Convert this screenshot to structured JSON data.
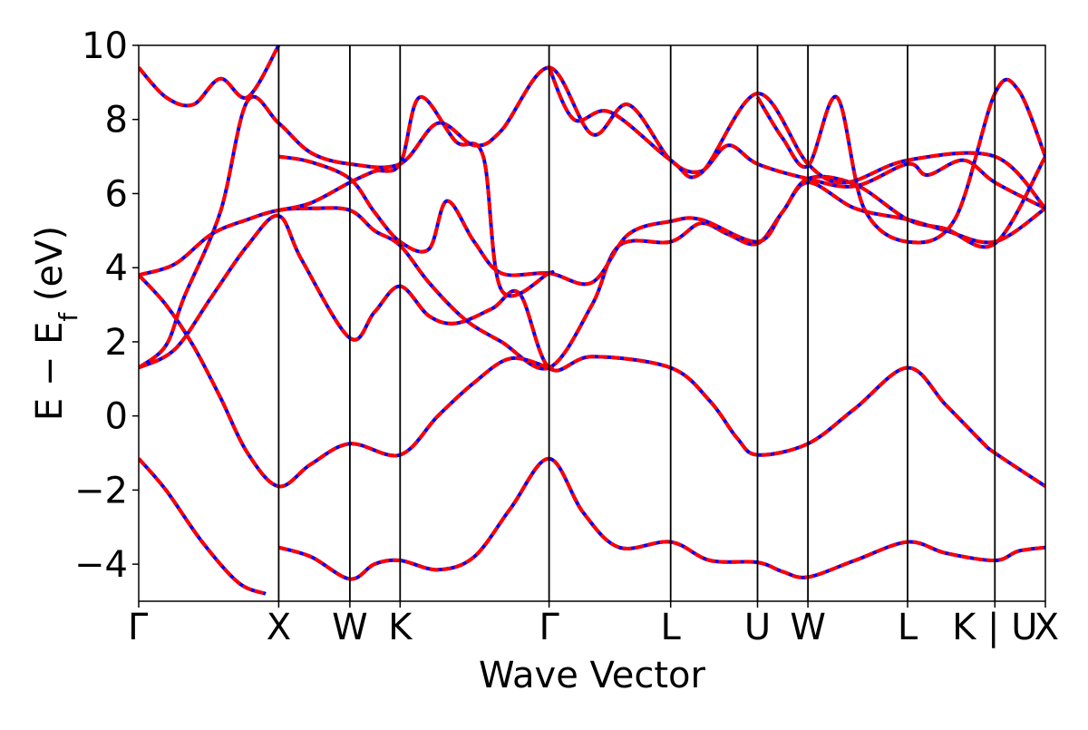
{
  "chart_data": {
    "type": "line",
    "xlabel": "Wave Vector",
    "ylabel_main": "E − E",
    "ylabel_sub": "f",
    "ylabel_unit": " (eV)",
    "ylim": [
      -5,
      10
    ],
    "yticks": [
      10,
      8,
      6,
      4,
      2,
      0,
      -2,
      -4
    ],
    "ytick_labels": [
      "10",
      "8",
      "6",
      "4",
      "2",
      "0",
      "−2",
      "−4"
    ],
    "grid": false,
    "legend": "none",
    "colors": {
      "line_primary": "#0000ff",
      "line_overlay": "#ff0000",
      "kpath_line": "#000000"
    },
    "kpath": [
      {
        "label": "Γ",
        "x": 0.0
      },
      {
        "label": "X",
        "x": 0.1544
      },
      {
        "label": "W",
        "x": 0.2329
      },
      {
        "label": "K",
        "x": 0.2883
      },
      {
        "label": "Γ",
        "x": 0.4526
      },
      {
        "label": "L",
        "x": 0.5867
      },
      {
        "label": "U",
        "x": 0.6825
      },
      {
        "label": "W",
        "x": 0.7381
      },
      {
        "label": "L",
        "x": 0.848
      },
      {
        "label": "K | U",
        "x": 0.9443
      },
      {
        "label": "X",
        "x": 1.0
      }
    ],
    "series": [
      {
        "points": [
          [
            0.0,
            -1.15
          ],
          [
            0.03,
            -2.0
          ],
          [
            0.07,
            -3.4
          ],
          [
            0.11,
            -4.5
          ],
          [
            0.14,
            -4.8
          ]
        ]
      },
      {
        "points": [
          [
            0.1544,
            -3.55
          ],
          [
            0.19,
            -3.8
          ],
          [
            0.2329,
            -4.4
          ],
          [
            0.26,
            -4.0
          ],
          [
            0.2883,
            -3.9
          ],
          [
            0.33,
            -4.15
          ],
          [
            0.37,
            -3.8
          ],
          [
            0.41,
            -2.5
          ],
          [
            0.4526,
            -1.15
          ],
          [
            0.49,
            -2.6
          ],
          [
            0.53,
            -3.55
          ],
          [
            0.5867,
            -3.4
          ],
          [
            0.63,
            -3.9
          ],
          [
            0.6825,
            -3.95
          ],
          [
            0.71,
            -4.2
          ],
          [
            0.7381,
            -4.35
          ],
          [
            0.79,
            -3.9
          ],
          [
            0.848,
            -3.4
          ],
          [
            0.89,
            -3.7
          ],
          [
            0.9443,
            -3.9
          ],
          [
            0.97,
            -3.65
          ],
          [
            1.0,
            -3.55
          ]
        ]
      },
      {
        "points": [
          [
            0.0,
            1.3
          ],
          [
            0.04,
            1.8
          ],
          [
            0.08,
            3.2
          ],
          [
            0.12,
            4.6
          ],
          [
            0.1544,
            5.4
          ],
          [
            0.18,
            4.2
          ],
          [
            0.2329,
            2.1
          ],
          [
            0.26,
            2.8
          ],
          [
            0.2883,
            3.5
          ],
          [
            0.32,
            2.7
          ],
          [
            0.35,
            2.5
          ],
          [
            0.39,
            2.9
          ],
          [
            0.42,
            3.3
          ],
          [
            0.4526,
            1.3
          ],
          [
            0.5,
            1.6
          ],
          [
            0.5867,
            1.3
          ],
          [
            0.63,
            0.4
          ],
          [
            0.66,
            -0.6
          ],
          [
            0.6825,
            -1.05
          ],
          [
            0.7381,
            -0.75
          ],
          [
            0.79,
            0.2
          ],
          [
            0.848,
            1.3
          ],
          [
            0.89,
            0.3
          ],
          [
            0.93,
            -0.7
          ],
          [
            0.9443,
            -1.0
          ],
          [
            1.0,
            -1.9
          ]
        ]
      },
      {
        "points": [
          [
            0.0,
            1.3
          ],
          [
            0.03,
            1.9
          ],
          [
            0.05,
            3.2
          ],
          [
            0.09,
            5.5
          ],
          [
            0.12,
            8.5
          ],
          [
            0.1544,
            7.9
          ],
          [
            0.19,
            7.1
          ],
          [
            0.2329,
            6.8
          ],
          [
            0.2883,
            6.8
          ],
          [
            0.33,
            7.9
          ],
          [
            0.37,
            7.3
          ],
          [
            0.4,
            7.7
          ],
          [
            0.4526,
            9.4
          ],
          [
            0.5,
            7.6
          ],
          [
            0.54,
            8.4
          ],
          [
            0.5867,
            6.9
          ],
          [
            0.62,
            6.6
          ],
          [
            0.65,
            7.3
          ],
          [
            0.6825,
            6.8
          ],
          [
            0.7381,
            6.4
          ],
          [
            0.79,
            6.2
          ],
          [
            0.848,
            6.8
          ],
          [
            0.87,
            6.5
          ],
          [
            0.91,
            6.9
          ],
          [
            0.9443,
            6.3
          ],
          [
            1.0,
            5.6
          ]
        ]
      },
      {
        "points": [
          [
            0.0,
            3.8
          ],
          [
            0.04,
            4.1
          ],
          [
            0.08,
            4.9
          ],
          [
            0.12,
            5.3
          ],
          [
            0.1544,
            5.55
          ],
          [
            0.19,
            5.6
          ],
          [
            0.2329,
            5.55
          ],
          [
            0.26,
            5.0
          ],
          [
            0.2883,
            4.6
          ],
          [
            0.32,
            3.6
          ],
          [
            0.36,
            2.6
          ],
          [
            0.4,
            2.0
          ],
          [
            0.4526,
            1.3
          ],
          [
            0.5,
            3.0
          ],
          [
            0.53,
            4.6
          ],
          [
            0.5867,
            4.7
          ],
          [
            0.62,
            5.2
          ],
          [
            0.65,
            4.9
          ],
          [
            0.6825,
            4.65
          ],
          [
            0.71,
            5.5
          ],
          [
            0.7381,
            6.3
          ],
          [
            0.79,
            5.6
          ],
          [
            0.848,
            5.3
          ],
          [
            0.89,
            5.0
          ],
          [
            0.9443,
            4.7
          ],
          [
            1.0,
            5.6
          ]
        ]
      },
      {
        "points": [
          [
            0.0,
            3.8
          ],
          [
            0.03,
            3.0
          ],
          [
            0.06,
            1.9
          ],
          [
            0.09,
            0.5
          ],
          [
            0.12,
            -1.0
          ],
          [
            0.1544,
            -1.9
          ],
          [
            0.19,
            -1.3
          ],
          [
            0.2329,
            -0.75
          ],
          [
            0.2883,
            -1.05
          ],
          [
            0.33,
            0.0
          ],
          [
            0.37,
            0.9
          ],
          [
            0.41,
            1.55
          ],
          [
            0.4526,
            1.3
          ],
          [
            0.4526,
            1.3
          ]
        ]
      },
      {
        "points": [
          [
            0.0,
            9.4
          ],
          [
            0.03,
            8.6
          ],
          [
            0.06,
            8.4
          ],
          [
            0.09,
            9.1
          ],
          [
            0.12,
            8.6
          ],
          [
            0.1544,
            10.0
          ]
        ]
      },
      {
        "points": [
          [
            0.1544,
            7.0
          ],
          [
            0.19,
            6.85
          ],
          [
            0.2329,
            6.4
          ],
          [
            0.26,
            5.5
          ],
          [
            0.2883,
            4.7
          ],
          [
            0.32,
            4.5
          ],
          [
            0.34,
            5.8
          ],
          [
            0.37,
            4.7
          ],
          [
            0.4,
            3.85
          ],
          [
            0.4526,
            3.85
          ],
          [
            0.5,
            3.6
          ],
          [
            0.54,
            4.9
          ],
          [
            0.5867,
            5.25
          ],
          [
            0.62,
            5.3
          ],
          [
            0.6825,
            4.7
          ],
          [
            0.71,
            5.5
          ],
          [
            0.7381,
            6.4
          ],
          [
            0.79,
            6.25
          ],
          [
            0.848,
            5.3
          ],
          [
            0.89,
            5.05
          ],
          [
            0.9443,
            4.65
          ],
          [
            1.0,
            7.0
          ]
        ]
      },
      {
        "points": [
          [
            0.1544,
            5.55
          ],
          [
            0.19,
            5.75
          ],
          [
            0.2329,
            6.3
          ],
          [
            0.26,
            6.6
          ],
          [
            0.2883,
            6.8
          ],
          [
            0.31,
            8.6
          ],
          [
            0.35,
            7.4
          ],
          [
            0.38,
            7.0
          ],
          [
            0.4,
            3.4
          ],
          [
            0.4526,
            3.85
          ],
          [
            0.4526,
            3.85
          ]
        ]
      },
      {
        "points": [
          [
            0.6825,
            8.6
          ],
          [
            0.71,
            7.5
          ],
          [
            0.7381,
            6.75
          ],
          [
            0.77,
            8.6
          ],
          [
            0.8,
            5.6
          ],
          [
            0.848,
            4.7
          ],
          [
            0.9,
            5.3
          ],
          [
            0.9443,
            8.7
          ],
          [
            0.97,
            8.8
          ],
          [
            1.0,
            7.0
          ]
        ]
      },
      {
        "points": [
          [
            0.4526,
            9.4
          ],
          [
            0.48,
            8.0
          ],
          [
            0.52,
            8.2
          ],
          [
            0.5867,
            6.9
          ],
          [
            0.62,
            6.55
          ],
          [
            0.6825,
            8.7
          ],
          [
            0.7381,
            6.8
          ],
          [
            0.78,
            6.3
          ],
          [
            0.848,
            6.9
          ],
          [
            0.9443,
            7.0
          ],
          [
            1.0,
            5.6
          ]
        ]
      }
    ]
  }
}
